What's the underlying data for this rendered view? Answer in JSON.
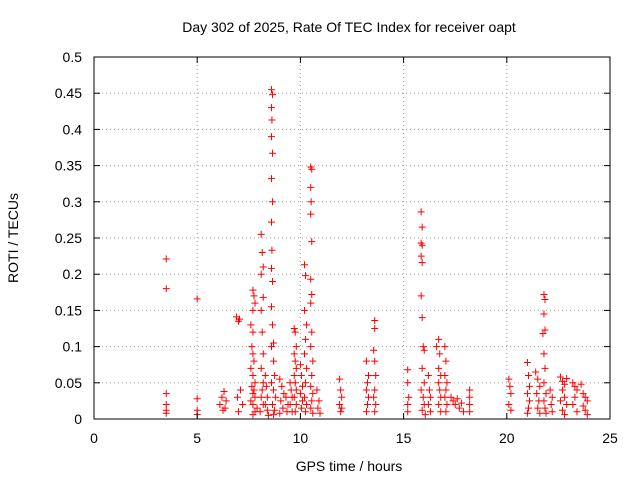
{
  "chart_data": {
    "type": "scatter",
    "title": "Day 302 of 2025, Rate Of TEC Index for receiver oapt",
    "xlabel": "GPS time / hours",
    "ylabel": "ROTI / TECUs",
    "xlim": [
      0,
      25
    ],
    "ylim": [
      0,
      0.5
    ],
    "x_ticks": [
      0,
      5,
      10,
      15,
      20,
      25
    ],
    "x_tick_labels": [
      "0",
      "5",
      "10",
      "15",
      "20",
      "25"
    ],
    "y_ticks": [
      0,
      0.05,
      0.1,
      0.15,
      0.2,
      0.25,
      0.3,
      0.35,
      0.4,
      0.45,
      0.5
    ],
    "y_tick_labels": [
      "0",
      "0.05",
      "0.1",
      "0.15",
      "0.2",
      "0.25",
      "0.3",
      "0.35",
      "0.4",
      "0.45",
      "0.5"
    ],
    "grid": true,
    "marker": "+",
    "color": "#ff0000",
    "series": [
      {
        "points": [
          [
            3.5,
            0.221
          ],
          [
            3.5,
            0.18
          ],
          [
            3.5,
            0.035
          ],
          [
            3.5,
            0.02
          ],
          [
            3.5,
            0.012
          ],
          [
            3.5,
            0.008
          ],
          [
            5.0,
            0.166
          ],
          [
            5.0,
            0.028
          ],
          [
            5.0,
            0.012
          ],
          [
            5.0,
            0.006
          ],
          [
            6.1,
            0.02
          ],
          [
            6.2,
            0.03
          ],
          [
            6.25,
            0.012
          ],
          [
            6.3,
            0.038
          ],
          [
            6.4,
            0.025
          ],
          [
            6.35,
            0.015
          ],
          [
            6.9,
            0.141
          ],
          [
            7.0,
            0.135
          ],
          [
            7.05,
            0.138
          ],
          [
            6.95,
            0.03
          ],
          [
            7.1,
            0.04
          ],
          [
            7.2,
            0.02
          ],
          [
            7.0,
            0.01
          ],
          [
            7.7,
            0.178
          ],
          [
            7.75,
            0.17
          ],
          [
            7.8,
            0.16
          ],
          [
            7.7,
            0.15
          ],
          [
            7.6,
            0.13
          ],
          [
            7.7,
            0.12
          ],
          [
            7.65,
            0.1
          ],
          [
            7.7,
            0.09
          ],
          [
            7.75,
            0.08
          ],
          [
            7.6,
            0.07
          ],
          [
            7.7,
            0.06
          ],
          [
            7.8,
            0.05
          ],
          [
            7.65,
            0.045
          ],
          [
            7.75,
            0.04
          ],
          [
            7.7,
            0.035
          ],
          [
            7.8,
            0.03
          ],
          [
            7.6,
            0.025
          ],
          [
            7.7,
            0.02
          ],
          [
            7.9,
            0.015
          ],
          [
            7.8,
            0.01
          ],
          [
            7.7,
            0.006
          ],
          [
            8.1,
            0.255
          ],
          [
            8.15,
            0.23
          ],
          [
            8.2,
            0.21
          ],
          [
            8.1,
            0.2
          ],
          [
            8.2,
            0.168
          ],
          [
            8.1,
            0.15
          ],
          [
            8.15,
            0.12
          ],
          [
            8.2,
            0.09
          ],
          [
            8.1,
            0.07
          ],
          [
            8.2,
            0.05
          ],
          [
            8.15,
            0.04
          ],
          [
            8.1,
            0.03
          ],
          [
            8.2,
            0.02
          ],
          [
            8.05,
            0.01
          ],
          [
            8.3,
            0.06
          ],
          [
            8.35,
            0.045
          ],
          [
            8.4,
            0.03
          ],
          [
            8.3,
            0.02
          ],
          [
            8.4,
            0.012
          ],
          [
            8.45,
            0.005
          ],
          [
            8.6,
            0.455
          ],
          [
            8.65,
            0.448
          ],
          [
            8.6,
            0.43
          ],
          [
            8.62,
            0.413
          ],
          [
            8.6,
            0.39
          ],
          [
            8.65,
            0.367
          ],
          [
            8.6,
            0.332
          ],
          [
            8.65,
            0.3
          ],
          [
            8.6,
            0.272
          ],
          [
            8.62,
            0.233
          ],
          [
            8.6,
            0.208
          ],
          [
            8.65,
            0.19
          ],
          [
            8.6,
            0.155
          ],
          [
            8.65,
            0.13
          ],
          [
            8.7,
            0.105
          ],
          [
            8.6,
            0.1
          ],
          [
            8.7,
            0.08
          ],
          [
            8.75,
            0.06
          ],
          [
            8.6,
            0.05
          ],
          [
            8.7,
            0.04
          ],
          [
            8.8,
            0.03
          ],
          [
            8.65,
            0.02
          ],
          [
            8.75,
            0.012
          ],
          [
            8.7,
            0.006
          ],
          [
            9.0,
            0.055
          ],
          [
            9.1,
            0.045
          ],
          [
            9.2,
            0.035
          ],
          [
            9.05,
            0.025
          ],
          [
            9.15,
            0.015
          ],
          [
            9.0,
            0.008
          ],
          [
            9.3,
            0.03
          ],
          [
            9.4,
            0.02
          ],
          [
            9.35,
            0.01
          ],
          [
            9.5,
            0.05
          ],
          [
            9.55,
            0.04
          ],
          [
            9.6,
            0.03
          ],
          [
            9.5,
            0.02
          ],
          [
            9.6,
            0.01
          ],
          [
            9.7,
            0.125
          ],
          [
            9.75,
            0.12
          ],
          [
            9.8,
            0.1
          ],
          [
            9.7,
            0.09
          ],
          [
            9.75,
            0.08
          ],
          [
            9.8,
            0.07
          ],
          [
            9.7,
            0.06
          ],
          [
            9.75,
            0.05
          ],
          [
            9.8,
            0.04
          ],
          [
            9.7,
            0.03
          ],
          [
            9.8,
            0.02
          ],
          [
            9.75,
            0.01
          ],
          [
            10.0,
            0.075
          ],
          [
            10.05,
            0.06
          ],
          [
            10.1,
            0.045
          ],
          [
            10.0,
            0.035
          ],
          [
            10.1,
            0.025
          ],
          [
            10.05,
            0.015
          ],
          [
            10.2,
            0.213
          ],
          [
            10.25,
            0.198
          ],
          [
            10.2,
            0.15
          ],
          [
            10.3,
            0.13
          ],
          [
            10.25,
            0.11
          ],
          [
            10.2,
            0.09
          ],
          [
            10.3,
            0.07
          ],
          [
            10.25,
            0.05
          ],
          [
            10.2,
            0.03
          ],
          [
            10.3,
            0.02
          ],
          [
            10.25,
            0.01
          ],
          [
            10.5,
            0.348
          ],
          [
            10.55,
            0.345
          ],
          [
            10.5,
            0.32
          ],
          [
            10.52,
            0.3
          ],
          [
            10.5,
            0.283
          ],
          [
            10.55,
            0.245
          ],
          [
            10.5,
            0.193
          ],
          [
            10.55,
            0.172
          ],
          [
            10.5,
            0.16
          ],
          [
            10.55,
            0.12
          ],
          [
            10.5,
            0.1
          ],
          [
            10.6,
            0.08
          ],
          [
            10.55,
            0.06
          ],
          [
            10.5,
            0.045
          ],
          [
            10.6,
            0.035
          ],
          [
            10.55,
            0.025
          ],
          [
            10.5,
            0.015
          ],
          [
            10.6,
            0.008
          ],
          [
            10.8,
            0.04
          ],
          [
            10.9,
            0.025
          ],
          [
            10.85,
            0.015
          ],
          [
            10.95,
            0.008
          ],
          [
            11.9,
            0.055
          ],
          [
            11.95,
            0.04
          ],
          [
            12.0,
            0.03
          ],
          [
            11.9,
            0.02
          ],
          [
            12.0,
            0.015
          ],
          [
            11.95,
            0.01
          ],
          [
            13.2,
            0.08
          ],
          [
            13.3,
            0.06
          ],
          [
            13.25,
            0.05
          ],
          [
            13.2,
            0.04
          ],
          [
            13.3,
            0.03
          ],
          [
            13.25,
            0.02
          ],
          [
            13.2,
            0.01
          ],
          [
            13.6,
            0.136
          ],
          [
            13.6,
            0.125
          ],
          [
            13.55,
            0.095
          ],
          [
            13.6,
            0.08
          ],
          [
            13.65,
            0.06
          ],
          [
            13.6,
            0.04
          ],
          [
            13.55,
            0.03
          ],
          [
            13.65,
            0.02
          ],
          [
            13.6,
            0.01
          ],
          [
            15.2,
            0.068
          ],
          [
            15.2,
            0.05
          ],
          [
            15.25,
            0.03
          ],
          [
            15.2,
            0.02
          ],
          [
            15.2,
            0.01
          ],
          [
            15.85,
            0.286
          ],
          [
            15.9,
            0.265
          ],
          [
            15.85,
            0.243
          ],
          [
            15.9,
            0.24
          ],
          [
            15.85,
            0.225
          ],
          [
            15.9,
            0.216
          ],
          [
            15.85,
            0.17
          ],
          [
            15.9,
            0.14
          ],
          [
            15.95,
            0.1
          ],
          [
            16.0,
            0.095
          ],
          [
            15.9,
            0.07
          ],
          [
            16.0,
            0.05
          ],
          [
            15.85,
            0.04
          ],
          [
            15.95,
            0.03
          ],
          [
            16.0,
            0.02
          ],
          [
            15.9,
            0.012
          ],
          [
            16.05,
            0.006
          ],
          [
            16.2,
            0.06
          ],
          [
            16.25,
            0.04
          ],
          [
            16.3,
            0.03
          ],
          [
            16.2,
            0.02
          ],
          [
            16.3,
            0.01
          ],
          [
            16.6,
            0.1
          ],
          [
            16.7,
            0.11
          ],
          [
            16.75,
            0.09
          ],
          [
            16.7,
            0.07
          ],
          [
            16.8,
            0.06
          ],
          [
            16.7,
            0.05
          ],
          [
            16.75,
            0.04
          ],
          [
            16.8,
            0.03
          ],
          [
            16.7,
            0.02
          ],
          [
            16.8,
            0.01
          ],
          [
            17.0,
            0.1
          ],
          [
            17.05,
            0.08
          ],
          [
            17.0,
            0.06
          ],
          [
            17.1,
            0.05
          ],
          [
            17.05,
            0.04
          ],
          [
            17.0,
            0.03
          ],
          [
            17.1,
            0.02
          ],
          [
            17.05,
            0.01
          ],
          [
            17.3,
            0.03
          ],
          [
            17.4,
            0.025
          ],
          [
            17.5,
            0.02
          ],
          [
            17.6,
            0.028
          ],
          [
            17.7,
            0.015
          ],
          [
            17.8,
            0.022
          ],
          [
            17.9,
            0.01
          ],
          [
            18.2,
            0.04
          ],
          [
            18.2,
            0.03
          ],
          [
            18.2,
            0.02
          ],
          [
            18.2,
            0.01
          ],
          [
            20.1,
            0.055
          ],
          [
            20.15,
            0.045
          ],
          [
            20.2,
            0.035
          ],
          [
            20.1,
            0.02
          ],
          [
            20.2,
            0.012
          ],
          [
            21.0,
            0.078
          ],
          [
            21.05,
            0.06
          ],
          [
            21.1,
            0.045
          ],
          [
            21.0,
            0.035
          ],
          [
            21.1,
            0.025
          ],
          [
            21.05,
            0.015
          ],
          [
            21.0,
            0.008
          ],
          [
            21.4,
            0.065
          ],
          [
            21.5,
            0.055
          ],
          [
            21.6,
            0.045
          ],
          [
            21.45,
            0.035
          ],
          [
            21.55,
            0.025
          ],
          [
            21.5,
            0.015
          ],
          [
            21.6,
            0.008
          ],
          [
            21.8,
            0.172
          ],
          [
            21.85,
            0.165
          ],
          [
            21.8,
            0.145
          ],
          [
            21.85,
            0.123
          ],
          [
            21.75,
            0.118
          ],
          [
            21.8,
            0.09
          ],
          [
            21.85,
            0.07
          ],
          [
            21.8,
            0.05
          ],
          [
            21.9,
            0.035
          ],
          [
            21.8,
            0.025
          ],
          [
            21.85,
            0.015
          ],
          [
            21.9,
            0.008
          ],
          [
            22.1,
            0.04
          ],
          [
            22.2,
            0.03
          ],
          [
            22.15,
            0.02
          ],
          [
            22.2,
            0.01
          ],
          [
            22.6,
            0.058
          ],
          [
            22.7,
            0.052
          ],
          [
            22.8,
            0.048
          ],
          [
            22.9,
            0.056
          ],
          [
            22.7,
            0.04
          ],
          [
            22.8,
            0.03
          ],
          [
            22.6,
            0.025
          ],
          [
            22.9,
            0.02
          ],
          [
            22.7,
            0.012
          ],
          [
            22.8,
            0.006
          ],
          [
            23.2,
            0.05
          ],
          [
            23.3,
            0.045
          ],
          [
            23.4,
            0.04
          ],
          [
            23.3,
            0.03
          ],
          [
            23.2,
            0.02
          ],
          [
            23.4,
            0.01
          ],
          [
            23.6,
            0.048
          ],
          [
            23.7,
            0.035
          ],
          [
            23.8,
            0.03
          ],
          [
            23.9,
            0.025
          ],
          [
            23.7,
            0.018
          ],
          [
            23.8,
            0.012
          ],
          [
            23.9,
            0.006
          ]
        ]
      }
    ]
  }
}
